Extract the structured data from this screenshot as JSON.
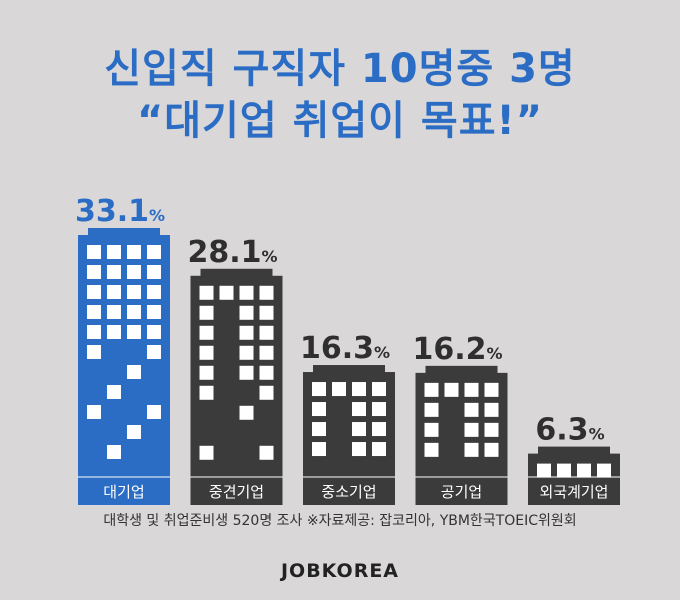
{
  "title_line1": "신입직 구직자 10명중 3명",
  "title_line2": "“대기업 취업이 목표!”",
  "footnote": "대학생 및 취업준비생 520명 조사 ※자료제공: 잡코리아, YBM한국TOEIC위원회",
  "brand": "JOBKOREA",
  "colors": {
    "highlight": "#2b6cc4",
    "building": "#3b3b3b",
    "background": "#d9d7d8"
  },
  "chart_data": {
    "type": "bar",
    "categories": [
      "대기업",
      "중견기업",
      "중소기업",
      "공기업",
      "외국계기업"
    ],
    "values": [
      33.1,
      28.1,
      16.3,
      16.2,
      6.3
    ],
    "unit": "%",
    "value_labels": [
      "33.1",
      "28.1",
      "16.3",
      "16.2",
      "6.3"
    ],
    "highlight_index": 0
  }
}
